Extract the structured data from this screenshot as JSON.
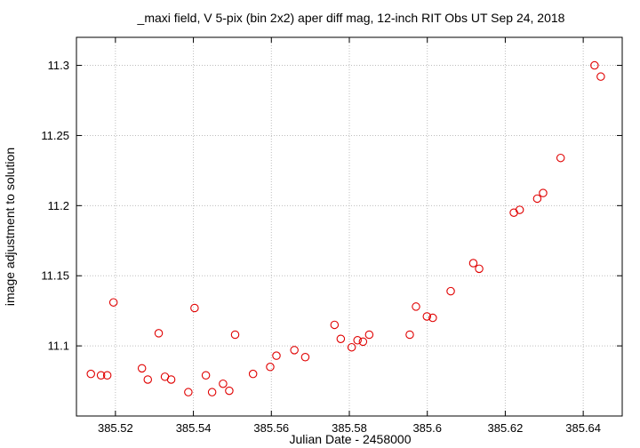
{
  "chart_data": {
    "type": "scatter",
    "title": "_maxi field, V 5-pix (bin 2x2) aper diff mag,  12-inch RIT Obs UT Sep 24, 2018",
    "xlabel": "Julian Date - 2458000",
    "ylabel": "image adjustment to solution",
    "xlim": [
      385.51,
      385.65
    ],
    "ylim": [
      11.05,
      11.32
    ],
    "x_ticks": [
      385.52,
      385.54,
      385.56,
      385.58,
      385.6,
      385.62,
      385.64
    ],
    "x_tick_labels": [
      "385.52",
      "385.54",
      "385.56",
      "385.58",
      "385.6",
      "385.62",
      "385.64"
    ],
    "y_ticks": [
      11.1,
      11.15,
      11.2,
      11.25,
      11.3
    ],
    "y_tick_labels": [
      "11.1",
      "11.15",
      "11.2",
      "11.25",
      "11.3"
    ],
    "grid": true,
    "marker": "open-circle",
    "color": "#e00000",
    "x": [
      385.5137,
      385.5163,
      385.5179,
      385.5195,
      385.5268,
      385.5283,
      385.5311,
      385.5327,
      385.5343,
      385.5387,
      385.5403,
      385.5432,
      385.5448,
      385.5476,
      385.5492,
      385.5507,
      385.5553,
      385.5597,
      385.5613,
      385.5659,
      385.5687,
      385.5762,
      385.5778,
      385.5806,
      385.5821,
      385.5835,
      385.5851,
      385.5955,
      385.5971,
      385.5999,
      385.6014,
      385.606,
      385.6118,
      385.6133,
      385.6222,
      385.6237,
      385.6282,
      385.6297,
      385.6342,
      385.6429,
      385.6445
    ],
    "y": [
      11.08,
      11.079,
      11.079,
      11.131,
      11.084,
      11.076,
      11.109,
      11.078,
      11.076,
      11.067,
      11.127,
      11.079,
      11.067,
      11.073,
      11.068,
      11.108,
      11.08,
      11.085,
      11.093,
      11.097,
      11.092,
      11.115,
      11.105,
      11.099,
      11.104,
      11.103,
      11.108,
      11.108,
      11.128,
      11.121,
      11.12,
      11.139,
      11.159,
      11.155,
      11.195,
      11.197,
      11.205,
      11.209,
      11.234,
      11.3,
      11.292
    ]
  }
}
